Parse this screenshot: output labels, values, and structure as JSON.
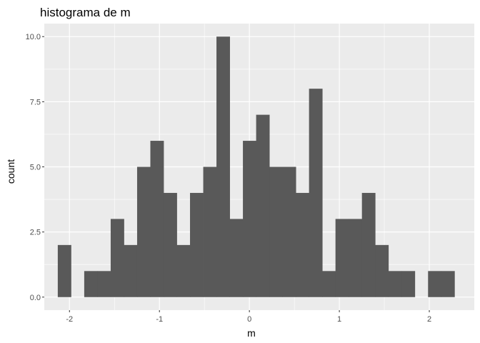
{
  "chart_data": {
    "type": "bar",
    "subtype": "histogram",
    "title": "histograma de m",
    "xlabel": "m",
    "ylabel": "count",
    "xlim": [
      -2.28,
      2.5
    ],
    "ylim": [
      -0.5,
      10.5
    ],
    "xticks": [
      -2,
      -1,
      0,
      1,
      2
    ],
    "xtick_labels": [
      "-2",
      "-1",
      "0",
      "1",
      "2"
    ],
    "yticks": [
      0,
      2.5,
      5,
      7.5,
      10
    ],
    "ytick_labels": [
      "0.0",
      "2.5",
      "5.0",
      "7.5",
      "10.0"
    ],
    "bin_start": -2.13,
    "bin_width": 0.147,
    "counts": [
      2,
      0,
      1,
      1,
      3,
      2,
      5,
      6,
      4,
      2,
      4,
      5,
      10,
      3,
      6,
      7,
      5,
      5,
      4,
      8,
      1,
      3,
      3,
      4,
      2,
      1,
      1,
      0,
      1,
      1
    ],
    "grid": true,
    "bar_color": "#595959",
    "panel_background": "#ebebeb",
    "grid_color": "#ffffff"
  }
}
